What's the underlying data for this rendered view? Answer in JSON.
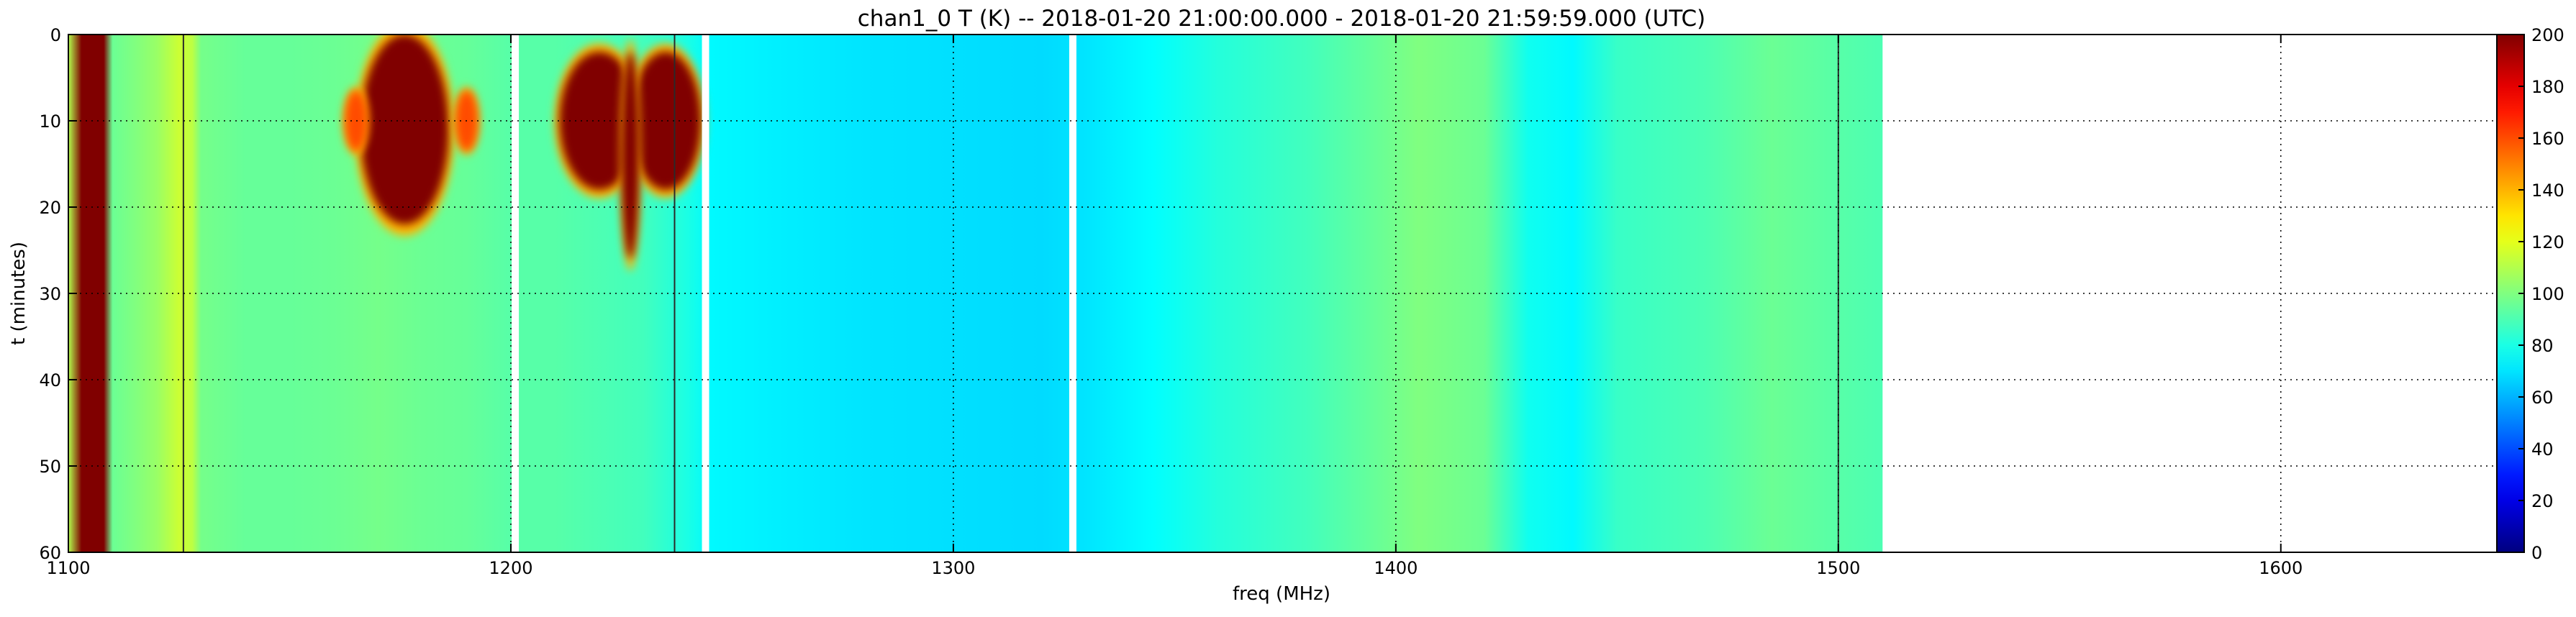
{
  "chart_data": {
    "type": "heatmap",
    "title": "chan1_0 T (K) -- 2018-01-20 21:00:00.000 - 2018-01-20 21:59:59.000 (UTC)",
    "xlabel": "freq (MHz)",
    "ylabel": "t (minutes)",
    "xlim": [
      1100,
      1655
    ],
    "ylim": [
      60,
      0
    ],
    "x_ticks": [
      1100,
      1200,
      1300,
      1400,
      1500,
      1600
    ],
    "y_ticks": [
      0,
      10,
      20,
      30,
      40,
      50,
      60
    ],
    "grid": true,
    "colormap": "jet",
    "colorbar": {
      "range": [
        0,
        200
      ],
      "ticks": [
        0,
        20,
        40,
        60,
        80,
        100,
        120,
        140,
        160,
        180,
        200
      ]
    },
    "data_extent_freq": [
      1100,
      1510
    ],
    "spectrum_profile": [
      {
        "freq": 1100,
        "T": 110
      },
      {
        "freq": 1103,
        "T": 200
      },
      {
        "freq": 1108,
        "T": 200
      },
      {
        "freq": 1110,
        "T": 96
      },
      {
        "freq": 1115,
        "T": 100
      },
      {
        "freq": 1120,
        "T": 105
      },
      {
        "freq": 1125,
        "T": 115
      },
      {
        "freq": 1128,
        "T": 112
      },
      {
        "freq": 1130,
        "T": 98
      },
      {
        "freq": 1140,
        "T": 95
      },
      {
        "freq": 1150,
        "T": 95
      },
      {
        "freq": 1160,
        "T": 96
      },
      {
        "freq": 1170,
        "T": 98
      },
      {
        "freq": 1180,
        "T": 96
      },
      {
        "freq": 1190,
        "T": 95
      },
      {
        "freq": 1200,
        "T": 92
      },
      {
        "freq": 1210,
        "T": 92
      },
      {
        "freq": 1220,
        "T": 90
      },
      {
        "freq": 1230,
        "T": 88
      },
      {
        "freq": 1240,
        "T": 80
      },
      {
        "freq": 1245,
        "T": 74
      },
      {
        "freq": 1260,
        "T": 72
      },
      {
        "freq": 1280,
        "T": 70
      },
      {
        "freq": 1300,
        "T": 69
      },
      {
        "freq": 1320,
        "T": 68
      },
      {
        "freq": 1330,
        "T": 70
      },
      {
        "freq": 1345,
        "T": 75
      },
      {
        "freq": 1360,
        "T": 82
      },
      {
        "freq": 1380,
        "T": 88
      },
      {
        "freq": 1395,
        "T": 95
      },
      {
        "freq": 1405,
        "T": 100
      },
      {
        "freq": 1420,
        "T": 96
      },
      {
        "freq": 1430,
        "T": 78
      },
      {
        "freq": 1440,
        "T": 74
      },
      {
        "freq": 1450,
        "T": 86
      },
      {
        "freq": 1470,
        "T": 90
      },
      {
        "freq": 1485,
        "T": 96
      },
      {
        "freq": 1500,
        "T": 92
      },
      {
        "freq": 1510,
        "T": 90
      }
    ],
    "rfi_blobs": [
      {
        "freq": 1176,
        "t_center": 11,
        "freq_halfwidth": 10,
        "t_halfwidth": 11,
        "T": 200
      },
      {
        "freq": 1165,
        "t_center": 10,
        "freq_halfwidth": 2.5,
        "t_halfwidth": 3.5,
        "T": 160
      },
      {
        "freq": 1190,
        "t_center": 10,
        "freq_halfwidth": 2.5,
        "t_halfwidth": 3.5,
        "T": 160
      },
      {
        "freq": 1220,
        "t_center": 10,
        "freq_halfwidth": 9,
        "t_halfwidth": 8,
        "T": 200
      },
      {
        "freq": 1235,
        "t_center": 10,
        "freq_halfwidth": 8,
        "t_halfwidth": 8,
        "T": 200
      },
      {
        "freq": 1227,
        "t_center": 14,
        "freq_halfwidth": 2,
        "t_halfwidth": 12,
        "T": 200
      }
    ],
    "masked_channels": [
      1201,
      1244,
      1327
    ],
    "dark_channels": [
      1126,
      1237,
      1500
    ]
  }
}
